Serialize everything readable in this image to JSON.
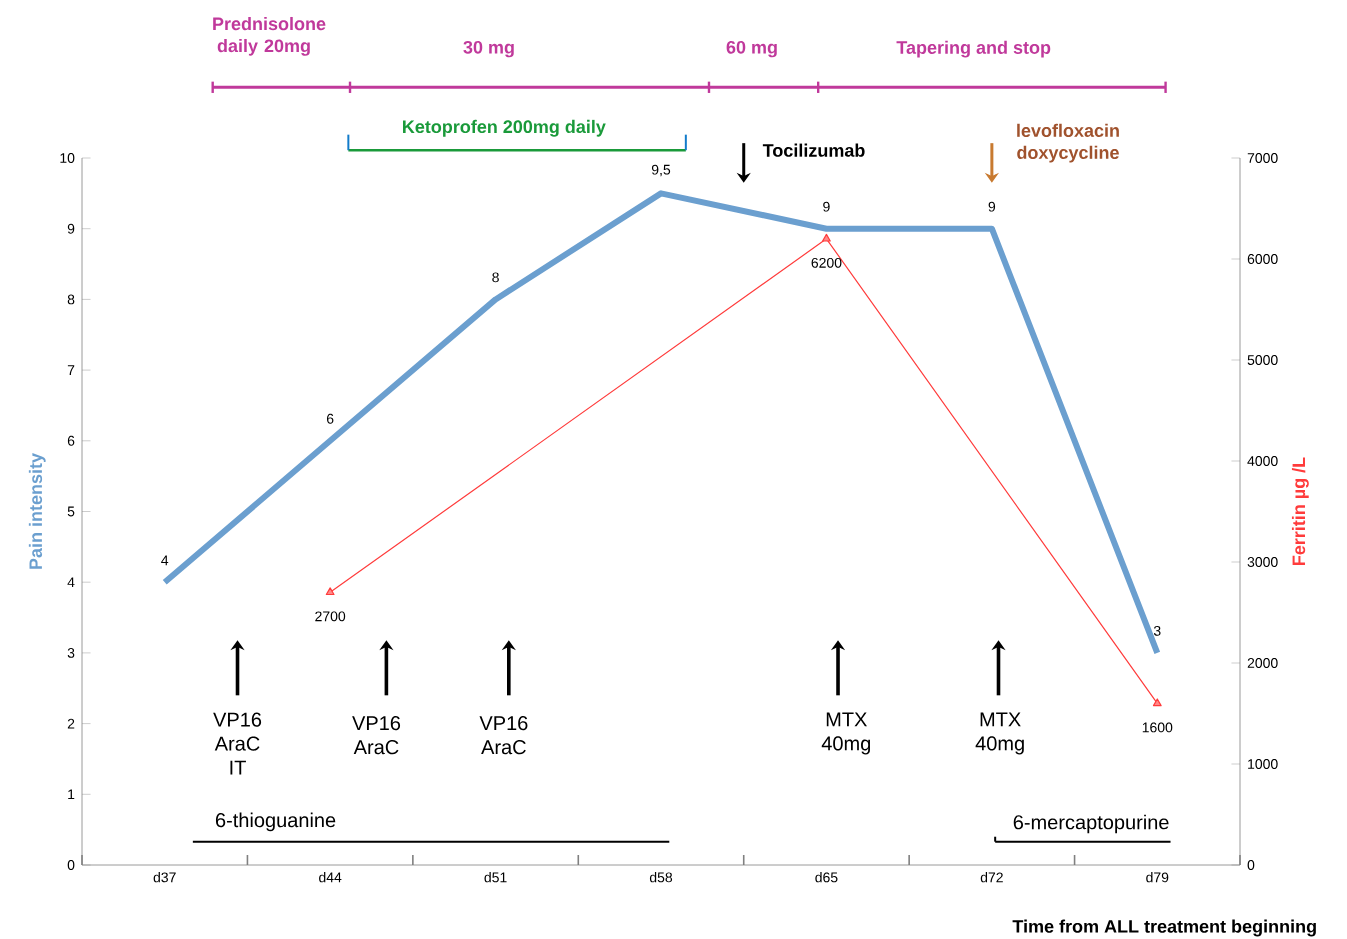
{
  "chart_data": {
    "type": "line",
    "xlabel": "Time from ALL treatment beginning",
    "ylabel": "Pain intensity",
    "y2label": "Ferritin µg /L",
    "categories": [
      "d37",
      "d44",
      "d51",
      "d58",
      "d65",
      "d72",
      "d79"
    ],
    "series": [
      {
        "color": "#6b9fcf",
        "marker": "none",
        "values": [
          4,
          6,
          8,
          9.5,
          9,
          9,
          3
        ],
        "value_labels": [
          "4",
          "6",
          "8",
          "9,5",
          "9",
          "9",
          "3"
        ]
      },
      {
        "color": "#ff3b3b",
        "marker": "triangle",
        "axis": "y2",
        "values": [
          null,
          2700,
          null,
          null,
          6200,
          null,
          1600
        ],
        "value_labels": [
          null,
          "2700",
          null,
          null,
          "6200",
          null,
          "1600"
        ]
      }
    ],
    "ylim": [
      0,
      10
    ],
    "yticks": [
      0,
      1,
      2,
      3,
      4,
      5,
      6,
      7,
      8,
      9,
      10
    ],
    "y2lim": [
      0,
      7000
    ],
    "y2ticks": [
      0,
      1000,
      2000,
      3000,
      4000,
      5000,
      6000,
      7000
    ],
    "grid": false,
    "line_style": "solid",
    "annotations": [
      "Prednisolone daily  20mg",
      "30 mg",
      "60 mg",
      "Tapering and stop",
      "Ketoprofen 200mg daily",
      "Tocilizumab",
      "levofloxacin doxycycline",
      "VP16 AraC IT",
      "VP16 AraC",
      "VP16 AraC",
      "MTX 40mg",
      "MTX 40mg",
      "6-thioguanine",
      "6-mercaptopurine"
    ]
  }
}
